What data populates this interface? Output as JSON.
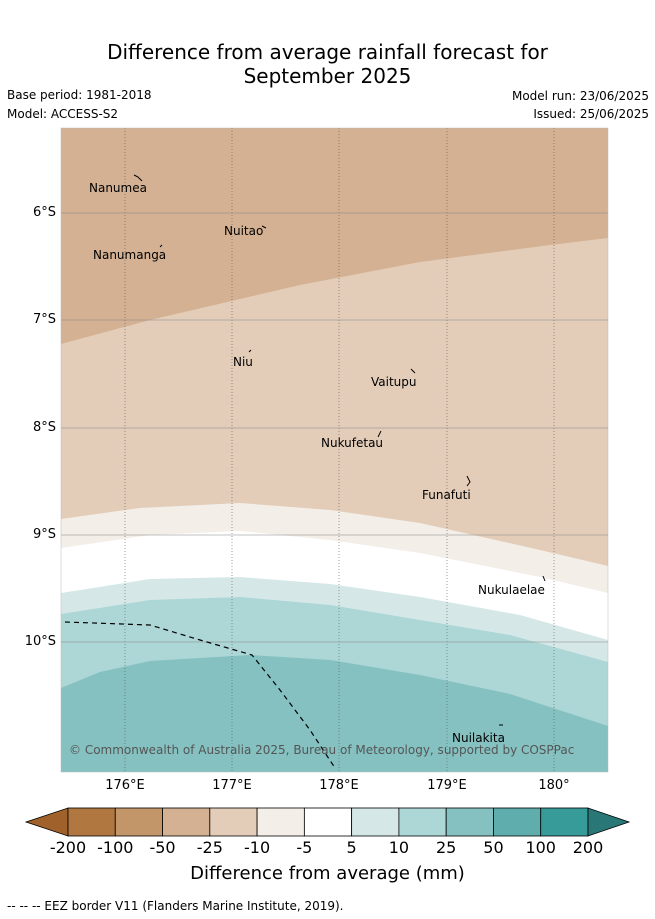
{
  "title_line1": "Difference from average rainfall forecast for",
  "title_line2": "September 2025",
  "meta": {
    "base_period": "Base period: 1981-2018",
    "model": "Model: ACCESS-S2",
    "model_run": "Model run: 23/06/2025",
    "issued": "Issued: 25/06/2025"
  },
  "map": {
    "latitude_ticks": [
      "6°S",
      "7°S",
      "8°S",
      "9°S",
      "10°S"
    ],
    "longitude_ticks": [
      "176°E",
      "177°E",
      "178°E",
      "179°E",
      "180°"
    ],
    "places": {
      "nanumea": "Nanumea",
      "nuitao": "Nuitao",
      "nanumanga": "Nanumanga",
      "niu": "Niu",
      "vaitupu": "Vaitupu",
      "nukufetau": "Nukufetau",
      "funafuti": "Funafuti",
      "nukulaelae": "Nukulaelae",
      "nuilakita": "Nuilakita"
    },
    "copyright": "© Commonwealth of Australia 2025, Bureau of Meteorology, supported by COSPPac"
  },
  "colorbar": {
    "labels": [
      "-200",
      "-100",
      "-50",
      "-25",
      "-10",
      "-5",
      "5",
      "10",
      "25",
      "50",
      "100",
      "200"
    ],
    "colors": [
      "#a0622a",
      "#b07740",
      "#c3966a",
      "#d3b192",
      "#e3cdb9",
      "#f3eee8",
      "#ffffff",
      "#d5e8e7",
      "#add6d6",
      "#85c1c1",
      "#5fadad",
      "#379b9a",
      "#2a7777"
    ],
    "title": "Difference from average (mm)"
  },
  "legend_note": "-- -- -- EEZ border V11 (Flanders Marine Institute, 2019)."
}
